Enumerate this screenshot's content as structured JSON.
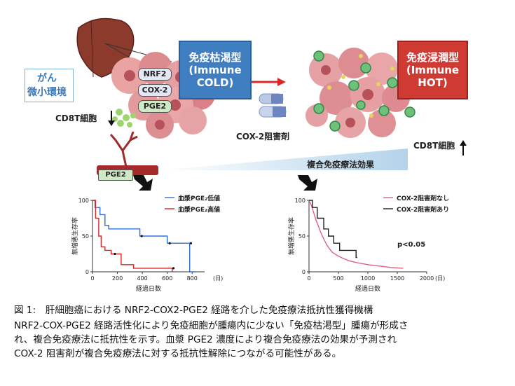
{
  "diagram": {
    "tme_label_line1": "がん",
    "tme_label_line2": "微小環境",
    "cd8_left": "CD8T細胞",
    "pathway": [
      "NRF2",
      "COX-2",
      "PGE2"
    ],
    "cold_line1": "免疫枯渇型",
    "cold_line2": "(Immune",
    "cold_line3": "COLD)",
    "hot_line1": "免疫浸潤型",
    "hot_line2": "(Immune",
    "hot_line3": "HOT)",
    "cox2_drug": "COX-2阻害剤",
    "cd8_right": "CD8T細胞",
    "combo_effect": "複合免疫療法効果",
    "vessel_label": "PGE2",
    "colors": {
      "cold_box": "#3f7fc1",
      "hot_box": "#cf3b33",
      "arrow_red": "#d8282a",
      "pge2_box": "#cfe9c5"
    }
  },
  "chart_data": [
    {
      "type": "line",
      "ylabel": "無増悪生存率",
      "xlabel": "経過日数",
      "xunit": "(日)",
      "xlim": [
        0,
        900
      ],
      "ylim": [
        0,
        100
      ],
      "xticks": [
        "0",
        "200",
        "400",
        "600",
        "800"
      ],
      "yticks": [
        "0",
        "50",
        "100"
      ],
      "series": [
        {
          "name": "血漿PGE₂低値",
          "color": "#2f6fd6",
          "x": [
            0,
            20,
            20,
            60,
            60,
            100,
            100,
            130,
            130,
            380,
            380,
            600,
            600,
            780,
            780,
            830
          ],
          "y": [
            100,
            100,
            90,
            90,
            80,
            80,
            65,
            65,
            60,
            60,
            50,
            50,
            40,
            40,
            0,
            0
          ]
        },
        {
          "name": "血漿PGE₂高値",
          "color": "#d62828",
          "x": [
            0,
            25,
            25,
            50,
            50,
            70,
            70,
            100,
            100,
            150,
            150,
            230,
            230,
            330,
            330,
            640,
            640
          ],
          "y": [
            100,
            100,
            75,
            75,
            50,
            50,
            35,
            35,
            30,
            30,
            25,
            25,
            10,
            10,
            5,
            5,
            0
          ]
        }
      ],
      "censor_low": [
        [
          395,
          50
        ],
        [
          620,
          40
        ],
        [
          790,
          40
        ]
      ],
      "censor_high": [
        [
          180,
          25
        ],
        [
          650,
          5
        ]
      ]
    },
    {
      "type": "line",
      "ylabel": "無増悪生存率",
      "xlabel": "経過日数",
      "xunit": "(日)",
      "xlim": [
        0,
        2000
      ],
      "ylim": [
        0,
        100
      ],
      "xticks": [
        "0",
        "500",
        "1000",
        "1500",
        "2000"
      ],
      "yticks": [
        "0",
        "50",
        "100"
      ],
      "annotation": "p<0.05",
      "series": [
        {
          "name": "COX-2阻害剤なし",
          "color": "#e0607e",
          "x": [
            0,
            30,
            60,
            90,
            120,
            160,
            200,
            250,
            300,
            350,
            400,
            500,
            600,
            700,
            800,
            1000,
            1200,
            1400,
            1600
          ],
          "y": [
            100,
            95,
            88,
            80,
            72,
            64,
            55,
            46,
            38,
            32,
            27,
            22,
            18,
            15,
            13,
            10,
            8,
            6,
            5
          ]
        },
        {
          "name": "COX-2阻害剤あり",
          "color": "#222222",
          "x": [
            0,
            60,
            60,
            140,
            140,
            250,
            250,
            330,
            330,
            420,
            420,
            520,
            520,
            800,
            800,
            820
          ],
          "y": [
            100,
            100,
            90,
            90,
            75,
            75,
            60,
            60,
            50,
            50,
            40,
            40,
            30,
            30,
            20,
            20
          ]
        }
      ]
    }
  ],
  "caption": {
    "line1": "図 1:　肝細胞癌における NRF2-COX2-PGE2 経路を介した免疫療法抵抗性獲得機構",
    "line2": "NRF2-COX-PGE2  経路活性化により免疫細胞が腫瘍内に少ない「免疫枯渇型」腫瘍が形成さ",
    "line3": "れ、複合免疫療法に抵抗性を示す。血漿  PGE2  濃度により複合免疫療法の効果が予測され",
    "line4": "COX-2 阻害剤が複合免疫療法に対する抵抗性解除につながる可能性がある。"
  }
}
